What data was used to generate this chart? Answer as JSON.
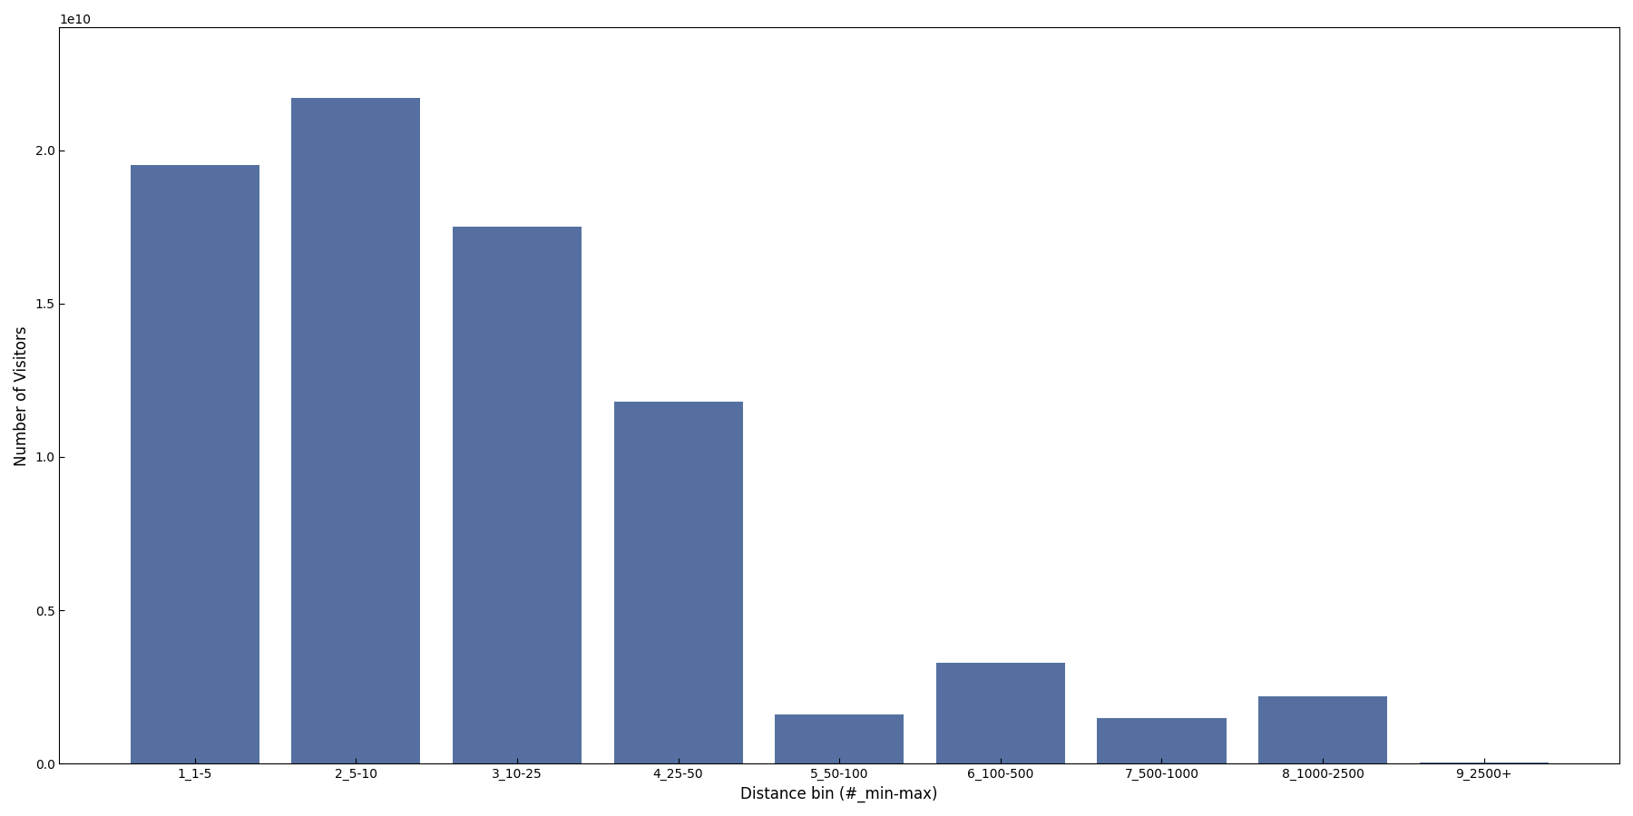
{
  "categories": [
    "1_1-5",
    "2_5-10",
    "3_10-25",
    "4_25-50",
    "5_50-100",
    "6_100-500",
    "7_500-1000",
    "8_1000-2500",
    "9_2500+"
  ],
  "values": [
    19500000000.0,
    21700000000.0,
    17500000000.0,
    11800000000.0,
    1600000000.0,
    3300000000.0,
    1500000000.0,
    2200000000.0,
    50000000.0
  ],
  "bar_color": "#5570a0",
  "xlabel": "Distance bin (#_min-max)",
  "ylabel": "Number of Visitors",
  "ylim": [
    0,
    24000000000.0
  ],
  "figsize": [
    18.0,
    9.0
  ],
  "dpi": 100
}
